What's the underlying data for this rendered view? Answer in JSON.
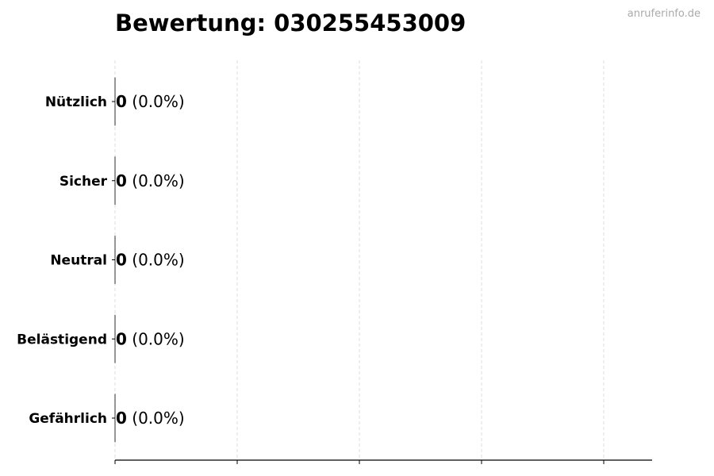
{
  "chart_data": {
    "type": "bar",
    "orientation": "horizontal",
    "title": "Bewertung: 030255453009",
    "watermark": "anruferinfo.de",
    "categories": [
      "Nützlich",
      "Sicher",
      "Neutral",
      "Belästigend",
      "Gefährlich"
    ],
    "values": [
      0,
      0,
      0,
      0,
      0
    ],
    "labels": [
      {
        "count": "0",
        "percent": "(0.0%)"
      },
      {
        "count": "0",
        "percent": "(0.0%)"
      },
      {
        "count": "0",
        "percent": "(0.0%)"
      },
      {
        "count": "0",
        "percent": "(0.0%)"
      },
      {
        "count": "0",
        "percent": "(0.0%)"
      }
    ],
    "xlabel": "",
    "ylabel": "",
    "xtick_labels_shown": false,
    "grid": "vertical dashed",
    "colors": {
      "grid": "#dddddd",
      "axis": "#000000",
      "watermark": "#aaaaaa"
    }
  }
}
